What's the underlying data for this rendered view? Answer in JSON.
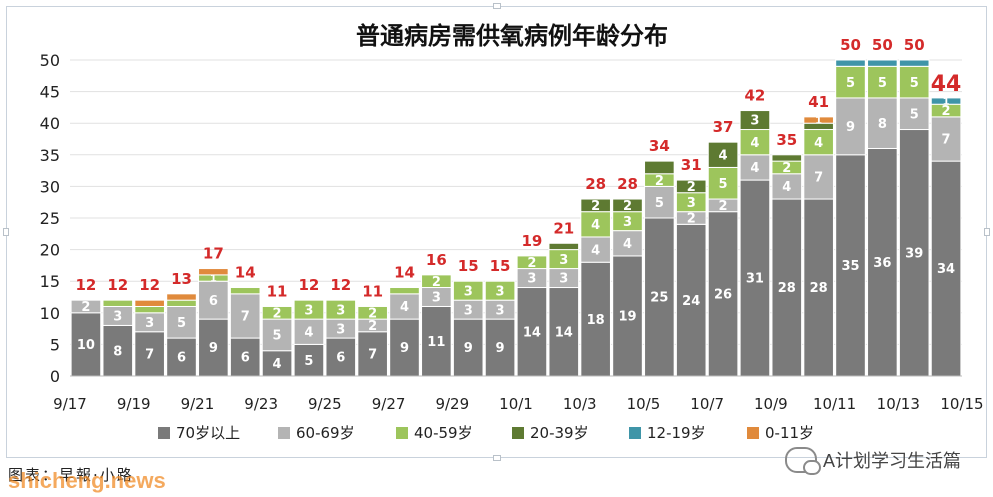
{
  "chart_data": {
    "type": "bar",
    "stacked": true,
    "title": "普通病房需供氧病例年龄分布",
    "ylim": [
      0,
      50
    ],
    "yticks": [
      0,
      5,
      10,
      15,
      20,
      25,
      30,
      35,
      40,
      45,
      50
    ],
    "categories": [
      "9/17",
      "9/18",
      "9/19",
      "9/20",
      "9/21",
      "9/22",
      "9/23",
      "9/24",
      "9/25",
      "9/26",
      "9/27",
      "9/28",
      "9/29",
      "9/30",
      "10/1",
      "10/2",
      "10/3",
      "10/4",
      "10/5",
      "10/6",
      "10/7",
      "10/8",
      "10/9",
      "10/10",
      "10/11",
      "10/12",
      "10/13",
      "10/14"
    ],
    "x_tick_labels": [
      "9/17",
      "9/19",
      "9/21",
      "9/23",
      "9/25",
      "9/27",
      "9/29",
      "10/1",
      "10/3",
      "10/5",
      "10/7",
      "10/9",
      "10/11",
      "10/13",
      "10/15"
    ],
    "series": [
      {
        "name": "70岁以上",
        "color": "#7a7a7a",
        "values": [
          10,
          8,
          7,
          6,
          9,
          6,
          4,
          5,
          6,
          7,
          9,
          11,
          9,
          9,
          14,
          14,
          18,
          19,
          25,
          24,
          26,
          31,
          28,
          28,
          35,
          36,
          39,
          34
        ]
      },
      {
        "name": "60-69岁",
        "color": "#b4b4b4",
        "values": [
          2,
          3,
          3,
          5,
          6,
          7,
          5,
          4,
          3,
          2,
          4,
          3,
          3,
          3,
          3,
          3,
          4,
          4,
          5,
          2,
          2,
          4,
          4,
          7,
          9,
          8,
          5,
          7
        ]
      },
      {
        "name": "40-59岁",
        "color": "#9dc55c",
        "values": [
          0,
          1,
          1,
          1,
          1,
          1,
          2,
          3,
          3,
          2,
          1,
          2,
          3,
          3,
          2,
          3,
          4,
          3,
          2,
          3,
          5,
          4,
          2,
          4,
          5,
          5,
          5,
          2
        ]
      },
      {
        "name": "20-39岁",
        "color": "#5e7a32",
        "values": [
          0,
          0,
          0,
          0,
          0,
          0,
          0,
          0,
          0,
          0,
          0,
          0,
          0,
          0,
          0,
          1,
          2,
          2,
          2,
          2,
          4,
          3,
          1,
          1,
          0,
          0,
          0,
          0
        ]
      },
      {
        "name": "12-19岁",
        "color": "#3f95a8",
        "values": [
          0,
          0,
          0,
          0,
          0,
          0,
          0,
          0,
          0,
          0,
          0,
          0,
          0,
          0,
          0,
          0,
          0,
          0,
          0,
          0,
          0,
          0,
          0,
          0,
          1,
          1,
          1,
          1
        ]
      },
      {
        "name": "0-11岁",
        "color": "#e08a3c",
        "values": [
          0,
          0,
          1,
          1,
          1,
          0,
          0,
          0,
          0,
          0,
          0,
          0,
          0,
          0,
          0,
          0,
          0,
          0,
          0,
          0,
          0,
          0,
          0,
          1,
          0,
          0,
          0,
          0
        ]
      }
    ],
    "segment_labels": {
      "70岁以上": [
        10,
        8,
        7,
        6,
        9,
        6,
        4,
        5,
        6,
        7,
        9,
        11,
        9,
        9,
        14,
        14,
        18,
        19,
        25,
        24,
        26,
        31,
        28,
        28,
        35,
        36,
        39,
        34
      ],
      "60-69岁": [
        2,
        3,
        3,
        5,
        6,
        7,
        5,
        4,
        3,
        2,
        4,
        3,
        3,
        3,
        3,
        3,
        4,
        4,
        5,
        2,
        2,
        4,
        4,
        7,
        9,
        8,
        5,
        7
      ],
      "40-59岁": [
        null,
        null,
        null,
        null,
        1,
        null,
        2,
        3,
        3,
        2,
        null,
        2,
        3,
        3,
        2,
        3,
        4,
        3,
        2,
        3,
        5,
        4,
        2,
        4,
        5,
        5,
        5,
        2
      ],
      "20-39岁": [
        null,
        null,
        null,
        null,
        null,
        null,
        null,
        null,
        null,
        null,
        null,
        null,
        null,
        null,
        null,
        null,
        2,
        2,
        null,
        2,
        4,
        3,
        null,
        null,
        null,
        null,
        null,
        null
      ],
      "12-19岁": [
        null,
        null,
        null,
        null,
        null,
        null,
        null,
        null,
        null,
        null,
        null,
        null,
        null,
        null,
        null,
        null,
        null,
        null,
        null,
        null,
        null,
        null,
        null,
        null,
        null,
        null,
        null,
        1
      ],
      "0-11岁": [
        null,
        null,
        null,
        null,
        null,
        null,
        null,
        null,
        null,
        null,
        null,
        null,
        null,
        null,
        null,
        null,
        null,
        null,
        null,
        null,
        null,
        null,
        null,
        1,
        null,
        null,
        null,
        null
      ]
    },
    "totals": [
      12,
      12,
      12,
      13,
      17,
      14,
      11,
      12,
      12,
      11,
      14,
      16,
      15,
      15,
      19,
      21,
      28,
      28,
      34,
      31,
      37,
      42,
      35,
      41,
      50,
      50,
      50,
      44
    ],
    "total_label_color": "#d42a2a",
    "grid": true,
    "legend_position": "bottom"
  },
  "caption": "图表：早報·小路",
  "watermark": "shicheng.news",
  "wechat_account": "A计划学习生活篇"
}
